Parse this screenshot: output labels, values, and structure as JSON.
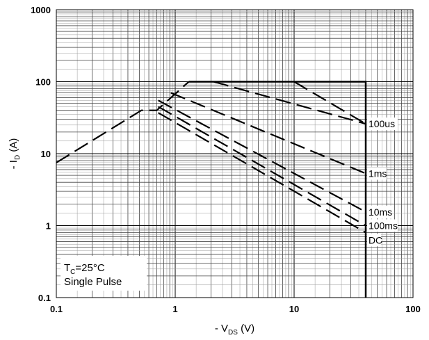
{
  "chart_data": {
    "type": "line",
    "x_scale": "log",
    "y_scale": "log",
    "xlim": [
      0.1,
      100
    ],
    "ylim": [
      0.1,
      1000
    ],
    "grid": true,
    "x_ticks": [
      "0.1",
      "1",
      "10",
      "100"
    ],
    "y_ticks": [
      "1000",
      "100",
      "10",
      "1",
      "0.1"
    ],
    "xlabel": {
      "prefix": "- V",
      "sub": "DS",
      "suffix": " (V)"
    },
    "ylabel": {
      "prefix": "- I",
      "sub": "D",
      "suffix": " (A)"
    },
    "annotation": {
      "line1_prefix": "T",
      "line1_sub": "C",
      "line1_suffix": "=25°C",
      "line2": "Single Pulse"
    },
    "boundary": {
      "name": "limit",
      "points": [
        [
          1.3,
          100
        ],
        [
          40,
          100
        ],
        [
          40,
          0.1
        ]
      ]
    },
    "series": [
      {
        "name": "100us",
        "label": "100us",
        "points": [
          [
            0.1,
            7.5
          ],
          [
            0.52,
            40
          ],
          [
            0.7,
            40
          ],
          [
            1.3,
            100
          ]
        ],
        "tail": [
          [
            2.1,
            100
          ],
          [
            40,
            26
          ]
        ],
        "tail2": [
          [
            10,
            100
          ],
          [
            40,
            26
          ]
        ]
      },
      {
        "name": "1ms",
        "label": "1ms",
        "points": [
          [
            0.92,
            70
          ],
          [
            40,
            5.3
          ]
        ]
      },
      {
        "name": "10ms",
        "label": "10ms",
        "points": [
          [
            0.72,
            55
          ],
          [
            40,
            1.55
          ]
        ]
      },
      {
        "name": "100ms",
        "label": "100ms",
        "points": [
          [
            0.72,
            45
          ],
          [
            40,
            1.0
          ]
        ]
      },
      {
        "name": "DC",
        "label": "DC",
        "points": [
          [
            0.72,
            37
          ],
          [
            40,
            0.8
          ]
        ]
      }
    ],
    "labels": [
      {
        "key": "100us",
        "text": "100us",
        "x": 40,
        "y": 26
      },
      {
        "key": "1ms",
        "text": "1ms",
        "x": 40,
        "y": 5.3
      },
      {
        "key": "10ms",
        "text": "10ms",
        "x": 40,
        "y": 1.55
      },
      {
        "key": "100ms",
        "text": "100ms",
        "x": 40,
        "y": 1.0
      },
      {
        "key": "DC",
        "text": "DC",
        "x": 40,
        "y": 0.63
      }
    ]
  }
}
